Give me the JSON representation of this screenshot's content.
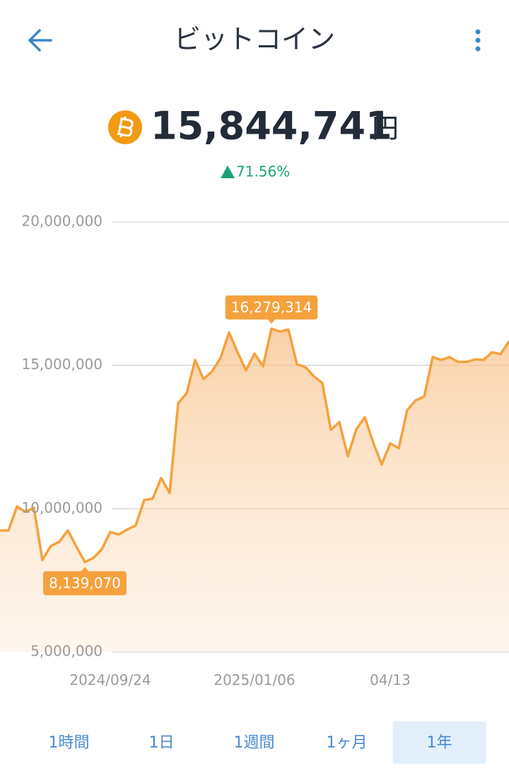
{
  "header": {
    "title": "ビットコイン"
  },
  "price": {
    "amount": "15,844,741",
    "unit": "円",
    "change": "71.56%"
  },
  "chart_data": {
    "type": "area",
    "color": "#f5a13d",
    "categories": [
      null,
      null,
      null,
      null,
      null,
      null,
      null,
      null,
      null,
      null,
      null,
      null,
      null,
      "2024/09/24",
      null,
      null,
      null,
      null,
      null,
      null,
      null,
      null,
      null,
      null,
      null,
      null,
      null,
      null,
      null,
      null,
      "2025/01/06",
      null,
      null,
      null,
      null,
      null,
      null,
      null,
      null,
      null,
      null,
      null,
      null,
      null,
      null,
      null,
      "04/13",
      null,
      null,
      null,
      null,
      null,
      null,
      null,
      null,
      null,
      null,
      null,
      null,
      null,
      null
    ],
    "values": [
      9240000,
      9240000,
      10080000,
      9890000,
      10030000,
      8210000,
      8700000,
      8850000,
      9240000,
      8680000,
      8139070,
      8280000,
      8580000,
      9190000,
      9100000,
      9270000,
      9420000,
      10300000,
      10350000,
      11070000,
      10550000,
      13680000,
      14030000,
      15190000,
      14520000,
      14790000,
      15260000,
      16150000,
      15460000,
      14820000,
      15410000,
      14970000,
      16279314,
      16180000,
      16250000,
      15040000,
      14940000,
      14620000,
      14380000,
      12750000,
      13020000,
      11830000,
      12770000,
      13190000,
      12300000,
      11540000,
      12280000,
      12110000,
      13440000,
      13780000,
      13910000,
      15290000,
      15190000,
      15290000,
      15120000,
      15120000,
      15210000,
      15190000,
      15460000,
      15390000,
      15840000
    ],
    "value_labels": [
      null,
      null,
      null,
      null,
      null,
      null,
      null,
      null,
      null,
      null,
      "8,139,070",
      null,
      null,
      null,
      null,
      null,
      null,
      null,
      null,
      null,
      null,
      null,
      null,
      null,
      null,
      null,
      null,
      null,
      null,
      null,
      null,
      null,
      "16,279,314",
      null,
      null,
      null,
      null,
      null,
      null,
      null,
      null,
      null,
      null,
      null,
      null,
      null,
      null,
      null,
      null,
      null,
      null,
      null,
      null,
      null,
      null,
      null,
      null,
      null,
      null,
      null,
      null
    ],
    "ylim": [
      5000000,
      20000000
    ],
    "yticks": [
      {
        "value": 20000000,
        "label": "20,000,000"
      },
      {
        "value": 15000000,
        "label": "15,000,000"
      },
      {
        "value": 10000000,
        "label": "10,000,000"
      },
      {
        "value": 5000000,
        "label": "5,000,000"
      }
    ],
    "grid": true
  },
  "tabs": [
    {
      "label": "1時間"
    },
    {
      "label": "1日"
    },
    {
      "label": "1週間"
    },
    {
      "label": "1ヶ月"
    },
    {
      "label": "1年",
      "selected": true
    }
  ]
}
